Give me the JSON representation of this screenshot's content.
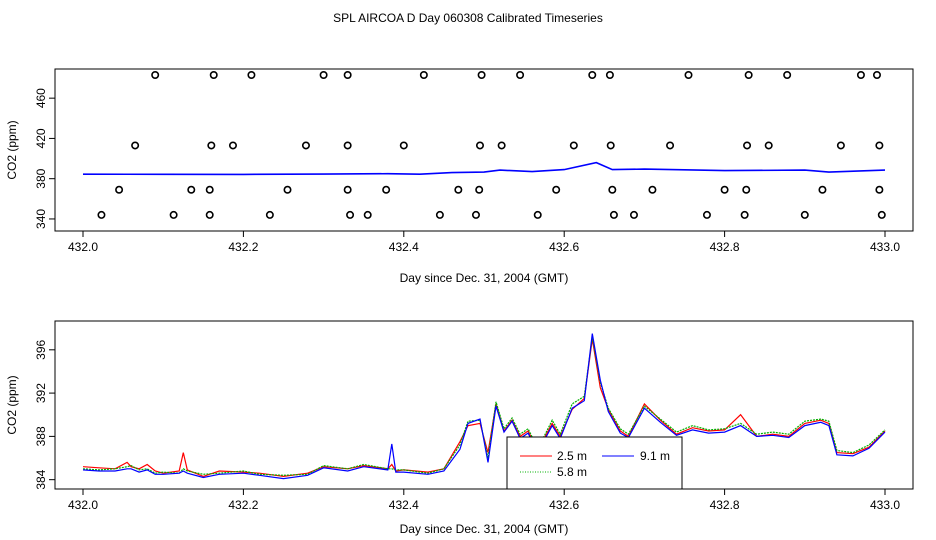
{
  "title": "SPL AIRCOA D  Day 060308  Calibrated Timeseries",
  "colors": {
    "s1": "#ff0000",
    "s2": "#00b000",
    "s3": "#0000ff",
    "axis": "#000000"
  },
  "chart_data": [
    {
      "type": "scatter+line",
      "xlabel": "Day since Dec. 31, 2004 (GMT)",
      "ylabel": "CO2 (ppm)",
      "xlim": [
        432.0,
        433.0
      ],
      "ylim": [
        333,
        484
      ],
      "xticks": [
        432.0,
        432.2,
        432.4,
        432.6,
        432.8,
        433.0
      ],
      "xtick_labels": [
        "432.0",
        "432.2",
        "432.4",
        "432.6",
        "432.8",
        "433.0"
      ],
      "yticks": [
        340,
        380,
        420,
        460
      ],
      "ytick_labels": [
        "340",
        "380",
        "420",
        "460"
      ],
      "points": {
        "name": "",
        "x": [
          432.09,
          432.163,
          432.21,
          432.3,
          432.33,
          432.425,
          432.497,
          432.545,
          432.635,
          432.657,
          432.755,
          432.83,
          432.878,
          432.97,
          432.99,
          432.065,
          432.16,
          432.187,
          432.278,
          432.33,
          432.4,
          432.495,
          432.522,
          432.612,
          432.658,
          432.732,
          432.828,
          432.855,
          432.945,
          432.993,
          432.045,
          432.135,
          432.158,
          432.255,
          432.33,
          432.378,
          432.468,
          432.494,
          432.59,
          432.66,
          432.71,
          432.8,
          432.827,
          432.922,
          432.993,
          432.023,
          432.113,
          432.158,
          432.233,
          432.333,
          432.355,
          432.445,
          432.49,
          432.567,
          432.662,
          432.687,
          432.778,
          432.825,
          432.9,
          432.996
        ],
        "y": [
          483,
          483,
          483,
          483,
          483,
          483,
          483,
          483,
          483,
          483,
          483,
          483,
          483,
          483,
          483,
          413,
          413,
          413,
          413,
          413,
          413,
          413,
          413,
          413,
          413,
          413,
          413,
          413,
          413,
          413,
          369,
          369,
          369,
          369,
          369,
          369,
          369,
          369,
          369,
          369,
          369,
          369,
          369,
          369,
          369,
          344,
          344,
          344,
          344,
          344,
          344,
          344,
          344,
          344,
          344,
          344,
          344,
          344,
          344,
          344
        ]
      },
      "series": [
        {
          "name": "",
          "x": [
            432.0,
            432.1,
            432.2,
            432.3,
            432.38,
            432.42,
            432.46,
            432.5,
            432.52,
            432.56,
            432.6,
            432.64,
            432.66,
            432.7,
            432.8,
            432.9,
            432.93,
            433.0
          ],
          "values": [
            384.5,
            384.4,
            384.3,
            384.6,
            385.0,
            384.5,
            386.0,
            386.5,
            388.5,
            387.0,
            389.0,
            396.0,
            389.0,
            389.5,
            388.0,
            388.5,
            386.5,
            388.5
          ]
        }
      ]
    },
    {
      "type": "line",
      "xlabel": "Day since Dec. 31, 2004 (GMT)",
      "ylabel": "CO2 (ppm)",
      "xlim": [
        432.0,
        433.0
      ],
      "ylim": [
        383.6,
        398.2
      ],
      "xticks": [
        432.0,
        432.2,
        432.4,
        432.6,
        432.8,
        433.0
      ],
      "xtick_labels": [
        "432.0",
        "432.2",
        "432.4",
        "432.6",
        "432.8",
        "433.0"
      ],
      "yticks": [
        384,
        388,
        392,
        396
      ],
      "ytick_labels": [
        "384",
        "388",
        "392",
        "396"
      ],
      "legend": {
        "position": "bottom-center",
        "entries": [
          "2.5 m",
          "5.8 m",
          "9.1 m"
        ]
      },
      "x": [
        432.0,
        432.02,
        432.04,
        432.055,
        432.06,
        432.07,
        432.08,
        432.09,
        432.1,
        432.12,
        432.125,
        432.13,
        432.15,
        432.17,
        432.2,
        432.22,
        432.25,
        432.28,
        432.3,
        432.33,
        432.35,
        432.38,
        432.385,
        432.39,
        432.4,
        432.43,
        432.45,
        432.47,
        432.48,
        432.495,
        432.505,
        432.515,
        432.525,
        432.535,
        432.545,
        432.555,
        432.565,
        432.575,
        432.585,
        432.595,
        432.61,
        432.625,
        432.635,
        432.645,
        432.655,
        432.67,
        432.68,
        432.7,
        432.72,
        432.74,
        432.76,
        432.78,
        432.8,
        432.82,
        432.84,
        432.86,
        432.88,
        432.9,
        432.92,
        432.93,
        432.94,
        432.96,
        432.98,
        433.0
      ],
      "series": [
        {
          "name": "2.5 m",
          "values": [
            385.2,
            385.1,
            385.0,
            385.6,
            385.2,
            385.0,
            385.4,
            384.8,
            384.6,
            384.8,
            386.5,
            384.9,
            384.3,
            384.8,
            384.7,
            384.6,
            384.3,
            384.6,
            385.2,
            385.0,
            385.3,
            385.0,
            385.4,
            384.8,
            384.9,
            384.7,
            385.0,
            387.5,
            389.0,
            389.2,
            386.5,
            391.0,
            388.5,
            389.5,
            388.0,
            388.5,
            387.0,
            387.8,
            389.2,
            388.0,
            390.5,
            391.5,
            397.0,
            392.5,
            390.5,
            388.5,
            388.0,
            391.0,
            389.5,
            388.2,
            388.8,
            388.5,
            388.6,
            390.0,
            388.0,
            388.2,
            388.0,
            389.2,
            389.5,
            389.2,
            386.5,
            386.4,
            387.0,
            388.5
          ]
        },
        {
          "name": "5.8 m",
          "values": [
            385.0,
            384.9,
            385.0,
            385.2,
            385.3,
            384.9,
            385.0,
            384.6,
            384.7,
            384.6,
            385.0,
            384.8,
            384.5,
            384.6,
            384.8,
            384.5,
            384.4,
            384.5,
            385.3,
            385.0,
            385.4,
            385.0,
            385.0,
            384.9,
            384.9,
            384.6,
            385.0,
            387.2,
            389.4,
            389.5,
            386.0,
            391.2,
            388.7,
            389.7,
            388.2,
            388.7,
            387.2,
            388.0,
            389.5,
            388.2,
            391.0,
            391.7,
            397.2,
            393.0,
            390.6,
            388.7,
            388.2,
            390.8,
            389.6,
            388.4,
            389.0,
            388.6,
            388.7,
            389.2,
            388.2,
            388.4,
            388.2,
            389.4,
            389.6,
            389.4,
            386.7,
            386.5,
            387.2,
            388.6
          ]
        },
        {
          "name": "9.1 m",
          "values": [
            384.9,
            384.8,
            384.8,
            385.0,
            385.0,
            384.7,
            384.9,
            384.5,
            384.5,
            384.6,
            384.8,
            384.6,
            384.2,
            384.5,
            384.6,
            384.4,
            384.1,
            384.4,
            385.1,
            384.8,
            385.2,
            384.9,
            387.3,
            384.7,
            384.7,
            384.5,
            384.8,
            386.8,
            389.2,
            389.6,
            385.6,
            390.8,
            388.4,
            389.4,
            387.8,
            388.3,
            386.8,
            387.6,
            389.0,
            387.8,
            390.6,
            391.3,
            397.5,
            393.2,
            390.3,
            388.3,
            387.9,
            390.6,
            389.3,
            388.1,
            388.6,
            388.3,
            388.4,
            389.0,
            388.0,
            388.1,
            387.9,
            389.0,
            389.3,
            389.0,
            386.3,
            386.2,
            386.9,
            388.4
          ]
        }
      ]
    }
  ]
}
